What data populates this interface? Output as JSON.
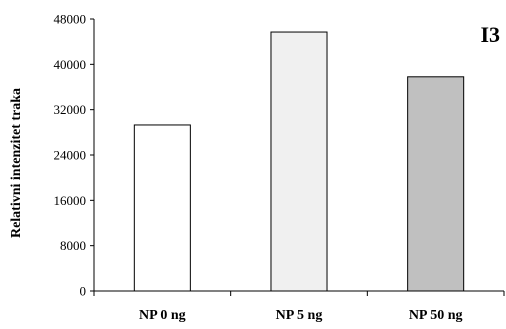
{
  "chart_data": {
    "type": "bar",
    "panel_label": "I3",
    "ylabel": "Relativni intenzitet traka",
    "xlabel": "",
    "categories": [
      "NP 0 ng",
      "NP 5 ng",
      "NP 50 ng"
    ],
    "values": [
      29300,
      45700,
      37800
    ],
    "bar_colors": [
      "#ffffff",
      "#f0f0f0",
      "#c0c0c0"
    ],
    "ylim": [
      0,
      48000
    ],
    "yticks": [
      0,
      8000,
      16000,
      24000,
      32000,
      40000,
      48000
    ],
    "ytick_labels": [
      "0",
      "8000",
      "16000",
      "24000",
      "32000",
      "40000",
      "48000"
    ],
    "grid": false,
    "legend": "none"
  }
}
